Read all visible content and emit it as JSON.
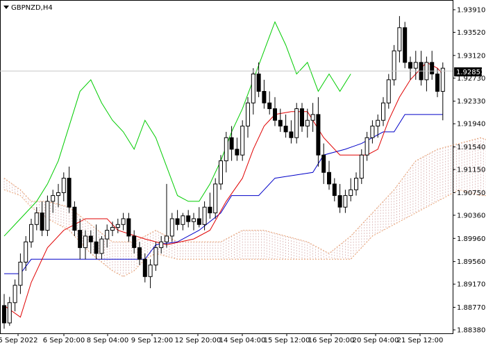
{
  "chart_data": {
    "type": "candlestick",
    "symbol": "GBPNZD,H4",
    "current_price": "1.92851",
    "y_ticks": [
      "1.93910",
      "1.93520",
      "1.93120",
      "1.92730",
      "1.92330",
      "1.91940",
      "1.91540",
      "1.91150",
      "1.90750",
      "1.90360",
      "1.89960",
      "1.89560",
      "1.89170",
      "1.88770",
      "1.88380"
    ],
    "x_ticks": [
      "5 Sep 2022",
      "6 Sep 20:00",
      "8 Sep 04:00",
      "9 Sep 12:00",
      "12 Sep 20:00",
      "14 Sep 04:00",
      "15 Sep 12:00",
      "16 Sep 20:00",
      "20 Sep 04:00",
      "21 Sep 12:00"
    ],
    "ylim": [
      1.8834,
      1.94
    ],
    "colors": {
      "grid": "#c8c8c8",
      "tenkan": "#e00000",
      "kijun": "#0000c8",
      "chikou": "#00cc00",
      "cloud_bear": "#e8a070",
      "cloud_bull": "#d8b0b0",
      "candle": "#000000"
    },
    "candles": [
      [
        1.888,
        1.89,
        1.884,
        1.885
      ],
      [
        1.885,
        1.8895,
        1.8845,
        1.8885
      ],
      [
        1.8885,
        1.8925,
        1.887,
        1.8915
      ],
      [
        1.8915,
        1.897,
        1.89,
        1.8955
      ],
      [
        1.8955,
        1.9,
        1.894,
        1.899
      ],
      [
        1.899,
        1.903,
        1.898,
        1.902
      ],
      [
        1.902,
        1.905,
        1.901,
        1.904
      ],
      [
        1.904,
        1.906,
        1.9,
        1.901
      ],
      [
        1.901,
        1.907,
        1.9,
        1.906
      ],
      [
        1.906,
        1.908,
        1.904,
        1.907
      ],
      [
        1.907,
        1.909,
        1.905,
        1.9075
      ],
      [
        1.9075,
        1.911,
        1.906,
        1.91
      ],
      [
        1.91,
        1.912,
        1.904,
        1.905
      ],
      [
        1.905,
        1.906,
        1.9,
        1.901
      ],
      [
        1.901,
        1.903,
        1.896,
        1.898
      ],
      [
        1.898,
        1.901,
        1.896,
        1.9
      ],
      [
        1.9,
        1.901,
        1.897,
        1.899
      ],
      [
        1.899,
        1.902,
        1.896,
        1.897
      ],
      [
        1.897,
        1.9,
        1.896,
        1.8995
      ],
      [
        1.8995,
        1.902,
        1.898,
        1.901
      ],
      [
        1.901,
        1.9025,
        1.9,
        1.9015
      ],
      [
        1.9015,
        1.903,
        1.9005,
        1.902
      ],
      [
        1.902,
        1.904,
        1.901,
        1.903
      ],
      [
        1.903,
        1.904,
        1.899,
        1.9
      ],
      [
        1.9,
        1.901,
        1.897,
        1.898
      ],
      [
        1.898,
        1.899,
        1.895,
        1.896
      ],
      [
        1.896,
        1.897,
        1.892,
        1.893
      ],
      [
        1.893,
        1.896,
        1.891,
        1.895
      ],
      [
        1.895,
        1.899,
        1.894,
        1.898
      ],
      [
        1.898,
        1.9,
        1.897,
        1.899
      ],
      [
        1.899,
        1.909,
        1.898,
        1.9
      ],
      [
        1.9,
        1.904,
        1.899,
        1.903
      ],
      [
        1.903,
        1.9045,
        1.901,
        1.902
      ],
      [
        1.902,
        1.904,
        1.901,
        1.9035
      ],
      [
        1.9035,
        1.9045,
        1.9015,
        1.9025
      ],
      [
        1.9025,
        1.904,
        1.901,
        1.903
      ],
      [
        1.903,
        1.905,
        1.9015,
        1.902
      ],
      [
        1.902,
        1.906,
        1.901,
        1.905
      ],
      [
        1.905,
        1.9075,
        1.903,
        1.904
      ],
      [
        1.904,
        1.91,
        1.903,
        1.909
      ],
      [
        1.909,
        1.914,
        1.908,
        1.913
      ],
      [
        1.913,
        1.918,
        1.911,
        1.917
      ],
      [
        1.917,
        1.919,
        1.913,
        1.915
      ],
      [
        1.915,
        1.917,
        1.913,
        1.914
      ],
      [
        1.914,
        1.92,
        1.913,
        1.919
      ],
      [
        1.919,
        1.924,
        1.917,
        1.923
      ],
      [
        1.923,
        1.929,
        1.921,
        1.928
      ],
      [
        1.928,
        1.93,
        1.924,
        1.925
      ],
      [
        1.925,
        1.927,
        1.922,
        1.923
      ],
      [
        1.923,
        1.925,
        1.921,
        1.922
      ],
      [
        1.922,
        1.924,
        1.919,
        1.92
      ],
      [
        1.92,
        1.922,
        1.918,
        1.919
      ],
      [
        1.919,
        1.921,
        1.917,
        1.918
      ],
      [
        1.918,
        1.92,
        1.916,
        1.917
      ],
      [
        1.917,
        1.923,
        1.916,
        1.922
      ],
      [
        1.922,
        1.923,
        1.918,
        1.919
      ],
      [
        1.919,
        1.922,
        1.917,
        1.92
      ],
      [
        1.92,
        1.923,
        1.918,
        1.921
      ],
      [
        1.921,
        1.924,
        1.912,
        1.914
      ],
      [
        1.914,
        1.916,
        1.909,
        1.911
      ],
      [
        1.911,
        1.913,
        1.908,
        1.909
      ],
      [
        1.909,
        1.91,
        1.906,
        1.907
      ],
      [
        1.907,
        1.909,
        1.904,
        1.905
      ],
      [
        1.905,
        1.908,
        1.904,
        1.907
      ],
      [
        1.907,
        1.91,
        1.906,
        1.908
      ],
      [
        1.908,
        1.911,
        1.907,
        1.91
      ],
      [
        1.91,
        1.915,
        1.909,
        1.914
      ],
      [
        1.914,
        1.918,
        1.913,
        1.917
      ],
      [
        1.917,
        1.92,
        1.916,
        1.919
      ],
      [
        1.919,
        1.921,
        1.917,
        1.92
      ],
      [
        1.92,
        1.924,
        1.919,
        1.923
      ],
      [
        1.923,
        1.928,
        1.922,
        1.927
      ],
      [
        1.927,
        1.933,
        1.926,
        1.932
      ],
      [
        1.932,
        1.938,
        1.93,
        1.936
      ],
      [
        1.936,
        1.937,
        1.929,
        1.93
      ],
      [
        1.93,
        1.931,
        1.927,
        1.929
      ],
      [
        1.929,
        1.932,
        1.927,
        1.93
      ],
      [
        1.93,
        1.932,
        1.926,
        1.927
      ],
      [
        1.927,
        1.931,
        1.925,
        1.93
      ],
      [
        1.93,
        1.932,
        1.927,
        1.928
      ],
      [
        1.928,
        1.929,
        1.924,
        1.925
      ],
      [
        1.925,
        1.93,
        1.92,
        1.929
      ]
    ],
    "tenkan": [
      [
        0,
        1.888
      ],
      [
        3,
        1.886
      ],
      [
        5,
        1.892
      ],
      [
        8,
        1.898
      ],
      [
        11,
        1.901
      ],
      [
        15,
        1.903
      ],
      [
        19,
        1.903
      ],
      [
        21,
        1.901
      ],
      [
        26,
        1.8995
      ],
      [
        28,
        1.899
      ],
      [
        30,
        1.8985
      ],
      [
        35,
        1.8995
      ],
      [
        38,
        1.901
      ],
      [
        41,
        1.906
      ],
      [
        44,
        1.91
      ],
      [
        46,
        1.915
      ],
      [
        48,
        1.919
      ],
      [
        50,
        1.921
      ],
      [
        53,
        1.9215
      ],
      [
        56,
        1.9215
      ],
      [
        59,
        1.917
      ],
      [
        62,
        1.914
      ],
      [
        65,
        1.914
      ],
      [
        67,
        1.914
      ],
      [
        69,
        1.915
      ],
      [
        71,
        1.92
      ],
      [
        73,
        1.924
      ],
      [
        75,
        1.927
      ],
      [
        78,
        1.93
      ],
      [
        80,
        1.929
      ],
      [
        81,
        1.928
      ]
    ],
    "kijun": [
      [
        0,
        1.8935
      ],
      [
        3,
        1.8935
      ],
      [
        5,
        1.896
      ],
      [
        9,
        1.896
      ],
      [
        20,
        1.896
      ],
      [
        26,
        1.896
      ],
      [
        28,
        1.8985
      ],
      [
        32,
        1.899
      ],
      [
        36,
        1.901
      ],
      [
        40,
        1.904
      ],
      [
        42,
        1.907
      ],
      [
        47,
        1.907
      ],
      [
        50,
        1.91
      ],
      [
        57,
        1.911
      ],
      [
        59,
        1.914
      ],
      [
        63,
        1.915
      ],
      [
        66,
        1.916
      ],
      [
        70,
        1.918
      ],
      [
        72,
        1.918
      ],
      [
        74,
        1.921
      ],
      [
        81,
        1.921
      ]
    ],
    "chikou": [
      [
        0,
        1.9
      ],
      [
        2,
        1.902
      ],
      [
        4,
        1.904
      ],
      [
        6,
        1.906
      ],
      [
        8,
        1.909
      ],
      [
        10,
        1.913
      ],
      [
        12,
        1.919
      ],
      [
        14,
        1.925
      ],
      [
        16,
        1.927
      ],
      [
        18,
        1.923
      ],
      [
        20,
        1.92
      ],
      [
        22,
        1.918
      ],
      [
        24,
        1.915
      ],
      [
        26,
        1.92
      ],
      [
        28,
        1.917
      ],
      [
        30,
        1.912
      ],
      [
        32,
        1.907
      ],
      [
        34,
        1.906
      ],
      [
        36,
        1.906
      ],
      [
        38,
        1.909
      ],
      [
        40,
        1.913
      ],
      [
        42,
        1.918
      ],
      [
        44,
        1.922
      ],
      [
        46,
        1.927
      ],
      [
        48,
        1.932
      ],
      [
        50,
        1.937
      ],
      [
        52,
        1.933
      ],
      [
        54,
        1.928
      ],
      [
        56,
        1.93
      ],
      [
        58,
        1.925
      ],
      [
        60,
        1.928
      ],
      [
        62,
        1.925
      ],
      [
        64,
        1.928
      ]
    ],
    "cloud_a": [
      [
        0,
        1.91
      ],
      [
        3,
        1.908
      ],
      [
        5,
        1.906
      ],
      [
        8,
        1.906
      ],
      [
        12,
        1.905
      ],
      [
        16,
        1.902
      ],
      [
        20,
        1.899
      ],
      [
        24,
        1.899
      ],
      [
        28,
        1.901
      ],
      [
        32,
        1.899
      ],
      [
        36,
        1.899
      ],
      [
        40,
        1.899
      ],
      [
        44,
        1.901
      ],
      [
        48,
        1.901
      ],
      [
        52,
        1.9
      ],
      [
        56,
        1.899
      ],
      [
        60,
        1.897
      ],
      [
        64,
        1.9
      ],
      [
        68,
        1.904
      ],
      [
        72,
        1.908
      ],
      [
        76,
        1.913
      ],
      [
        80,
        1.915
      ],
      [
        84,
        1.916
      ],
      [
        88,
        1.917
      ],
      [
        91,
        1.916
      ],
      [
        94,
        1.915
      ]
    ],
    "cloud_b": [
      [
        0,
        1.908
      ],
      [
        3,
        1.907
      ],
      [
        5,
        1.905
      ],
      [
        8,
        1.903
      ],
      [
        12,
        1.901
      ],
      [
        16,
        1.897
      ],
      [
        20,
        1.894
      ],
      [
        22,
        1.893
      ],
      [
        24,
        1.894
      ],
      [
        26,
        1.896
      ],
      [
        28,
        1.897
      ],
      [
        32,
        1.896
      ],
      [
        36,
        1.896
      ],
      [
        40,
        1.896
      ],
      [
        44,
        1.896
      ],
      [
        48,
        1.896
      ],
      [
        52,
        1.896
      ],
      [
        56,
        1.896
      ],
      [
        60,
        1.896
      ],
      [
        64,
        1.896
      ],
      [
        68,
        1.9
      ],
      [
        72,
        1.902
      ],
      [
        76,
        1.904
      ],
      [
        80,
        1.906
      ],
      [
        84,
        1.908
      ],
      [
        88,
        1.907
      ],
      [
        91,
        1.907
      ],
      [
        94,
        1.91
      ]
    ]
  }
}
